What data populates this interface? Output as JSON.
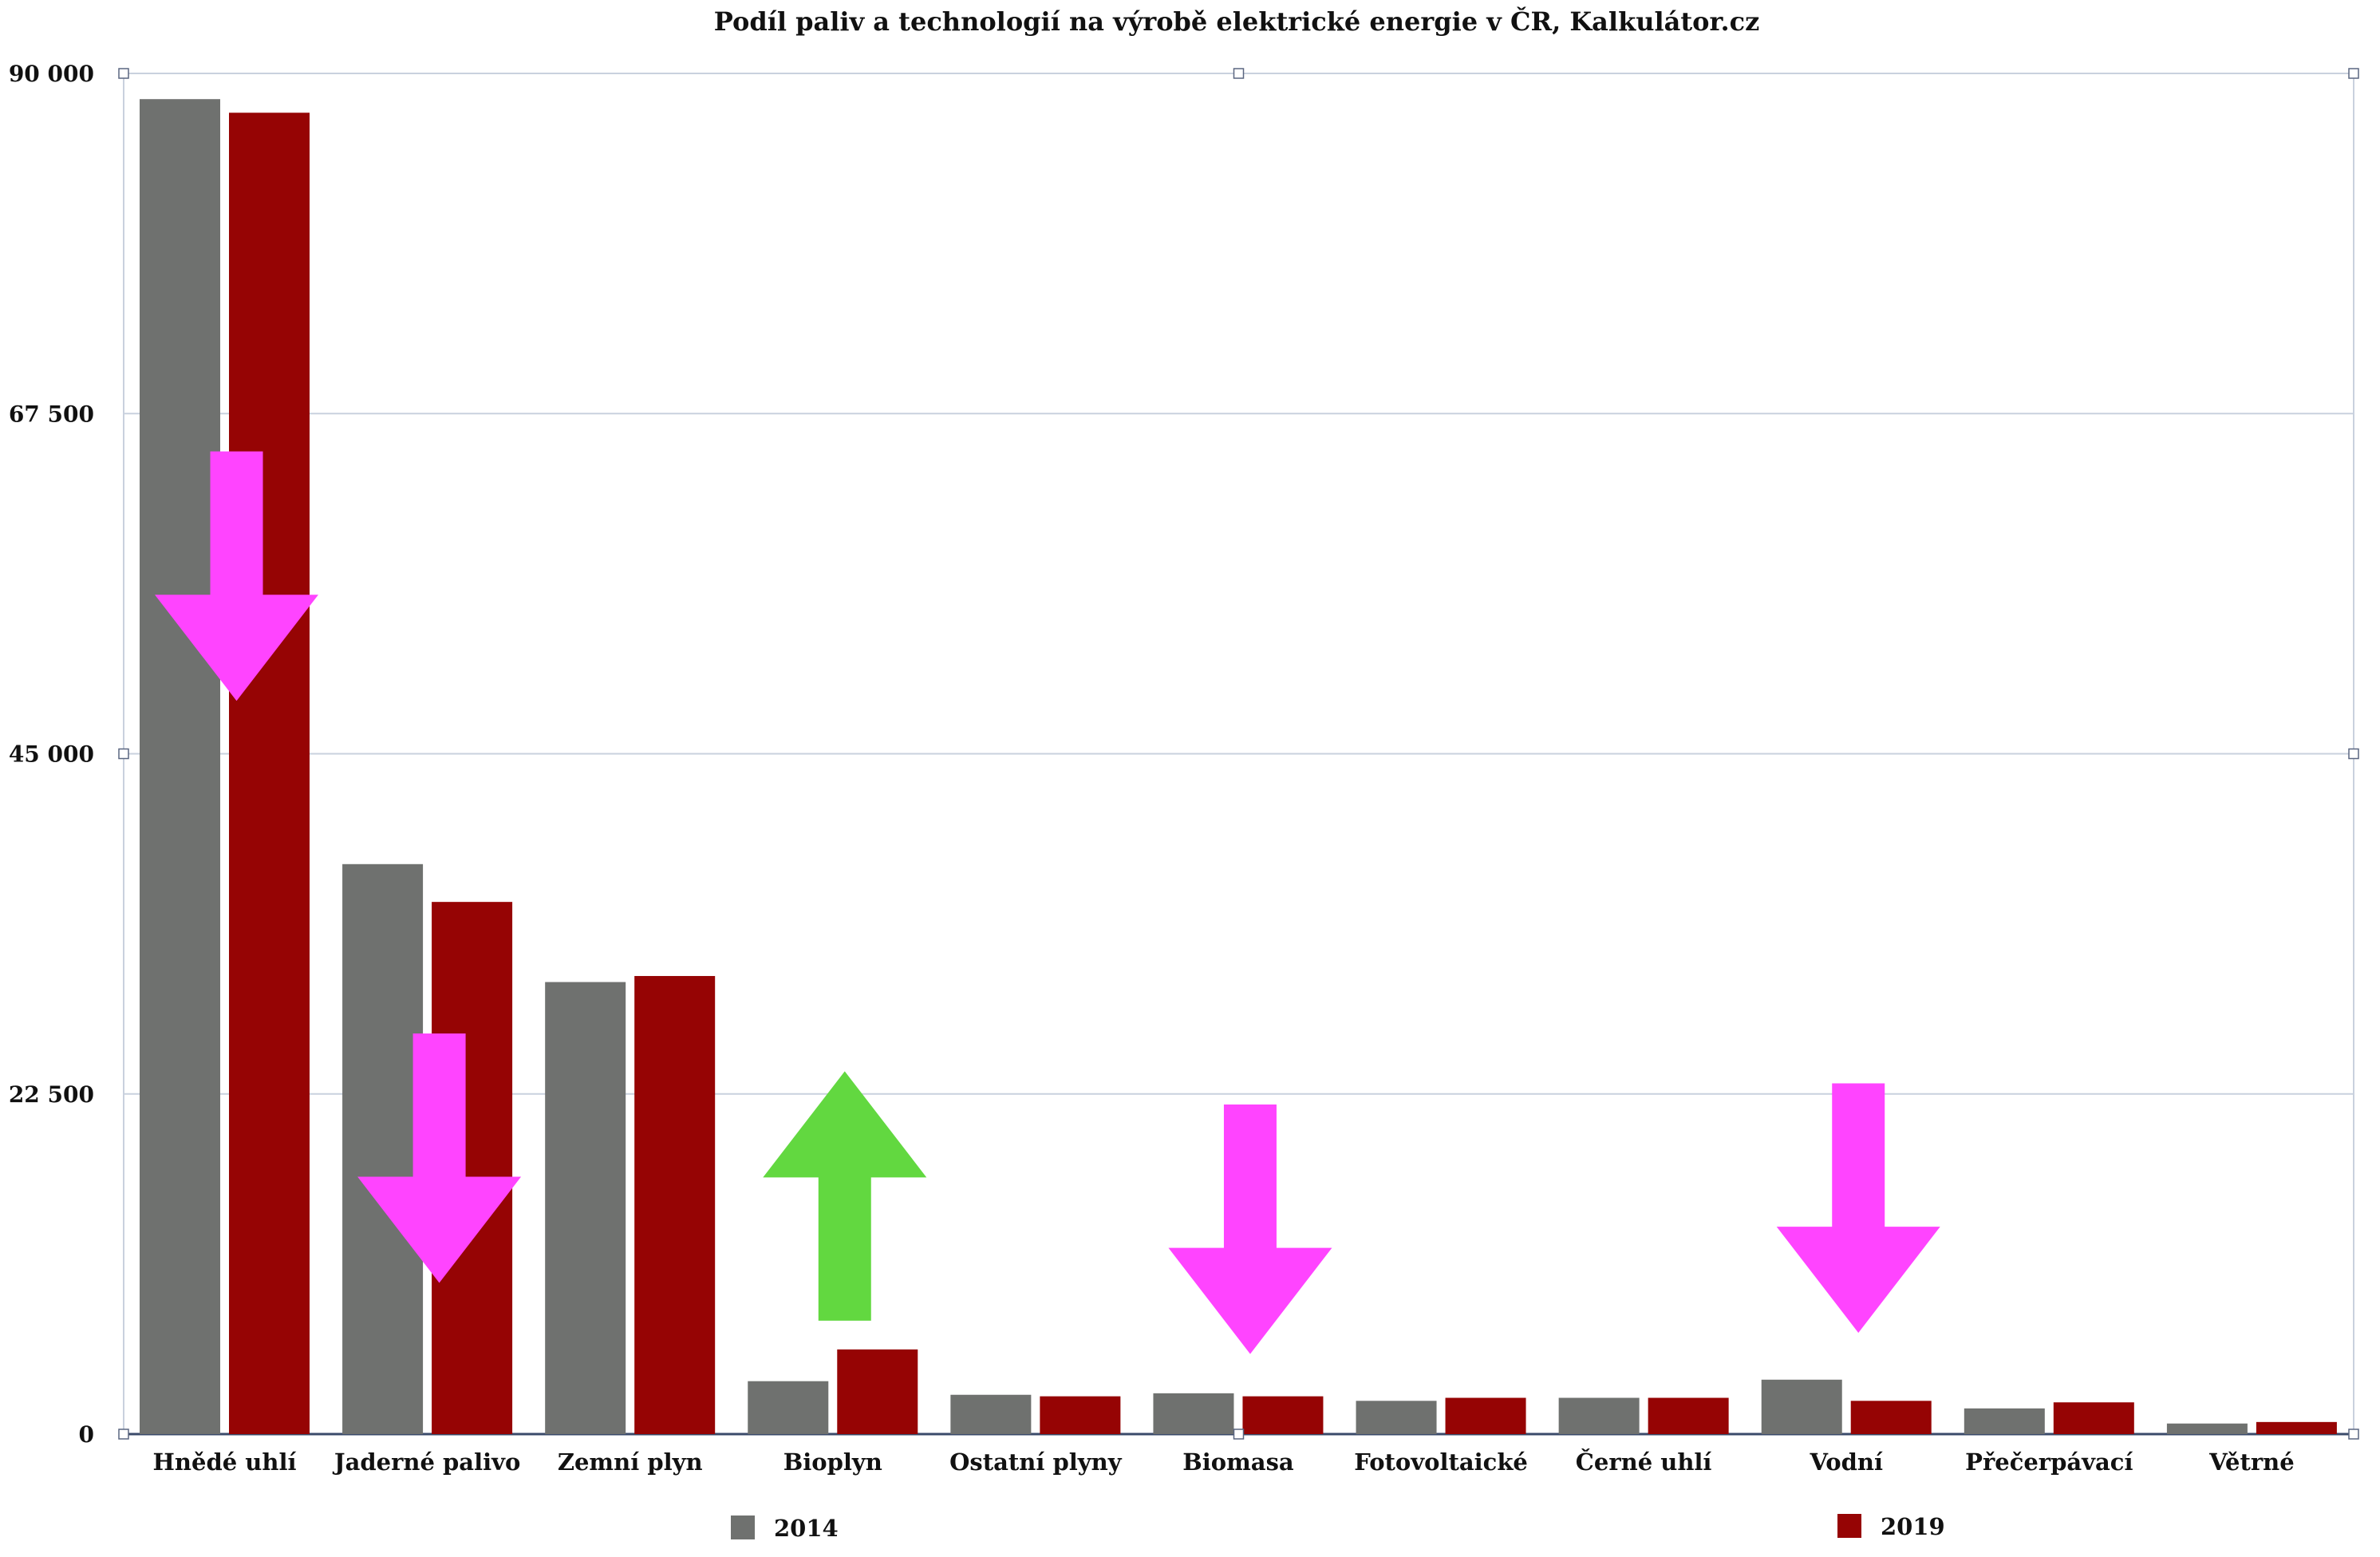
{
  "chart_data": {
    "type": "bar",
    "title": "Podíl paliv a technologií na výrobě elektrické energie v ČR, Kalkulátor.cz",
    "xlabel": "",
    "ylabel": "",
    "ylim": [
      0,
      90000
    ],
    "yticks": [
      0,
      22500,
      45000,
      67500,
      90000
    ],
    "ytick_labels": [
      "0",
      "22 500",
      "45 000",
      "67 500",
      "90 000"
    ],
    "grid": true,
    "legend_position": "bottom",
    "categories": [
      "Hnědé uhlí",
      "Jaderné palivo",
      "Zemní plyn",
      "Bioplyn",
      "Ostatní plyny",
      "Biomasa",
      "Fotovoltaické",
      "Černé uhlí",
      "Vodní",
      "Přečerpávací",
      "Větrné"
    ],
    "series": [
      {
        "name": "2014",
        "color": "#6f716f",
        "values": [
          88300,
          37700,
          29900,
          3500,
          2600,
          2700,
          2200,
          2400,
          3600,
          1700,
          700
        ]
      },
      {
        "name": "2019",
        "color": "#960404",
        "values": [
          87400,
          35200,
          30300,
          5600,
          2500,
          2500,
          2400,
          2400,
          2200,
          2100,
          800
        ]
      }
    ],
    "annotations": [
      {
        "type": "arrow",
        "direction": "down",
        "color": "#ff44ff",
        "category": "Hnědé uhlí",
        "from": 65000,
        "to": 48500
      },
      {
        "type": "arrow",
        "direction": "down",
        "color": "#ff44ff",
        "category": "Jaderné palivo",
        "from": 26500,
        "to": 10000
      },
      {
        "type": "arrow",
        "direction": "up",
        "color": "#62d840",
        "category": "Bioplyn",
        "from": 7500,
        "to": 24000
      },
      {
        "type": "arrow",
        "direction": "down",
        "color": "#ff44ff",
        "category": "Biomasa",
        "from": 21800,
        "to": 5300
      },
      {
        "type": "arrow",
        "direction": "down",
        "color": "#ff44ff",
        "category": "Vodní",
        "from": 23200,
        "to": 6700
      }
    ]
  }
}
